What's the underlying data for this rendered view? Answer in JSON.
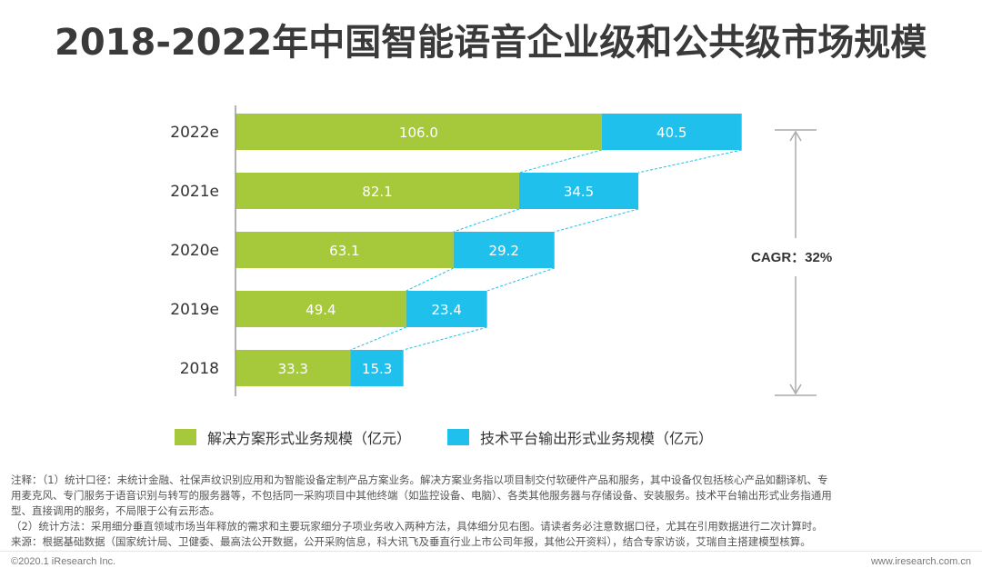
{
  "title": "2018-2022年中国智能语音企业级和公共级市场规模",
  "chart_data": {
    "type": "bar",
    "orientation": "horizontal",
    "stacked": true,
    "categories": [
      "2022e",
      "2021e",
      "2020e",
      "2019e",
      "2018"
    ],
    "series": [
      {
        "name": "解决方案形式业务规模（亿元）",
        "values": [
          106.0,
          82.1,
          63.1,
          49.4,
          33.3
        ],
        "labels": [
          "106.0",
          "82.1",
          "63.1",
          "49.4",
          "33.3"
        ],
        "color": "#a6c83b"
      },
      {
        "name": "技术平台输出形式业务规模（亿元）",
        "values": [
          40.5,
          34.5,
          29.2,
          23.4,
          15.3
        ],
        "labels": [
          "40.5",
          "34.5",
          "29.2",
          "23.4",
          "15.3"
        ],
        "color": "#1fc0ec"
      }
    ],
    "annotation": "CAGR：32%",
    "xlim": [
      0,
      146.5
    ]
  },
  "notes": {
    "line1": "注释：（1）统计口径：未统计金融、社保声纹识别应用和为智能设备定制产品方案业务。解决方案业务指以项目制交付软硬件产品和服务，其中设备仅包括核心产品如翻译机、专",
    "line2": "用麦克风、专门服务于语音识别与转写的服务器等，不包括同一采购项目中其他终端（如监控设备、电脑）、各类其他服务器与存储设备、安装服务。技术平台输出形式业务指通用",
    "line3": "型、直接调用的服务，不局限于公有云形态。",
    "line4": "（2）统计方法：采用细分垂直领域市场当年释放的需求和主要玩家细分子项业务收入两种方法，具体细分见右图。请读者务必注意数据口径，尤其在引用数据进行二次计算时。",
    "line5": "来源：根据基础数据（国家统计局、卫健委、最高法公开数据，公开采购信息，科大讯飞及垂直行业上市公司年报，其他公开资料），结合专家访谈，艾瑞自主搭建模型核算。"
  },
  "footer": {
    "left": "©2020.1 iResearch Inc.",
    "right": "www.iresearch.com.cn"
  }
}
